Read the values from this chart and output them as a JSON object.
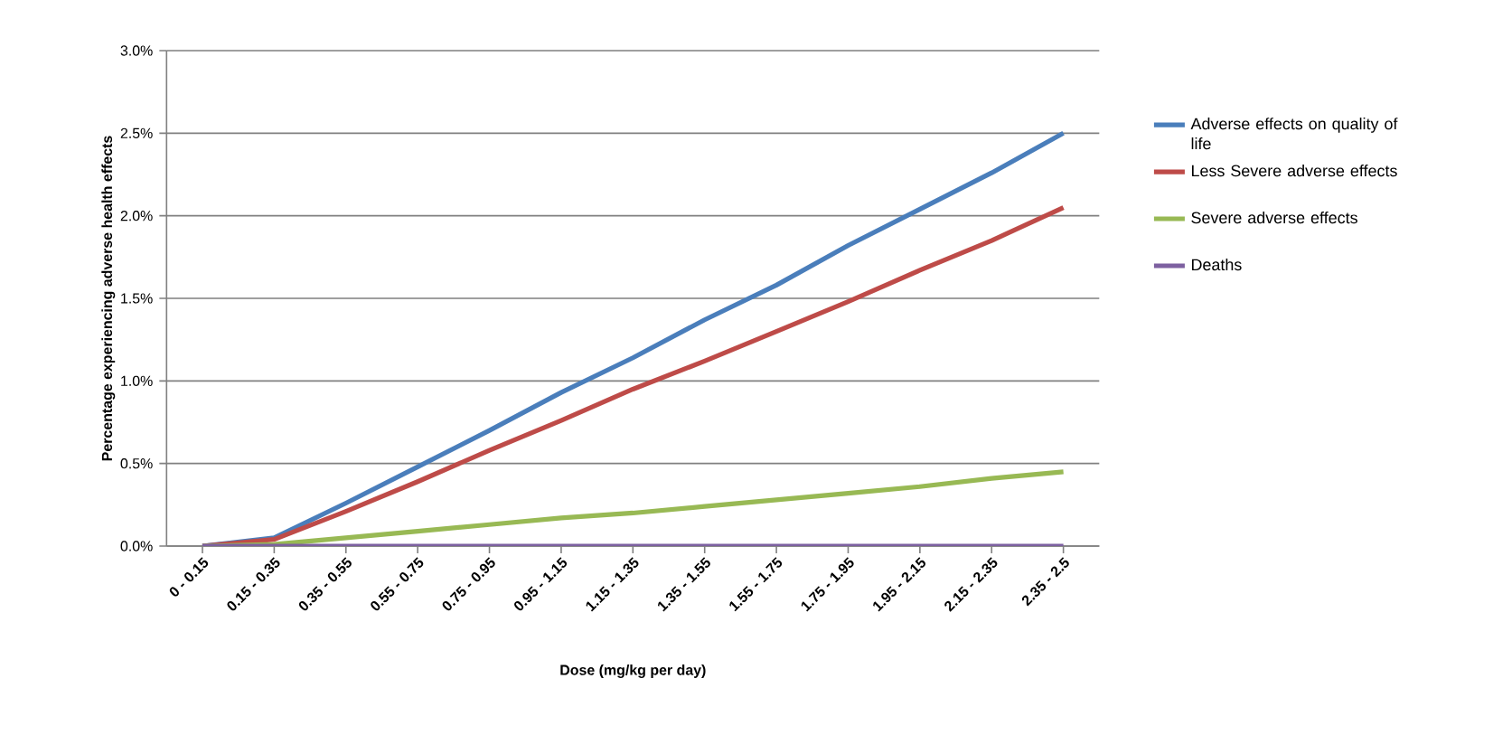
{
  "chart_data": {
    "type": "line",
    "xlabel": "Dose (mg/kg per day)",
    "ylabel": "Percentage experiencing adverse health effects",
    "categories": [
      "0 - 0.15",
      "0.15 - 0.35",
      "0.35 - 0.55",
      "0.55 - 0.75",
      "0.75 - 0.95",
      "0.95 - 1.15",
      "1.15 - 1.35",
      "1.35 - 1.55",
      "1.55 - 1.75",
      "1.75 - 1.95",
      "1.95 - 2.15",
      "2.15 - 2.35",
      "2.35 - 2.5"
    ],
    "series": [
      {
        "name": "Adverse effects on quality of life",
        "color": "#4a7ebb",
        "values": [
          0,
          0.05,
          0.26,
          0.48,
          0.7,
          0.93,
          1.14,
          1.37,
          1.58,
          1.82,
          2.04,
          2.26,
          2.5
        ]
      },
      {
        "name": "Less Severe adverse effects",
        "color": "#be4b48",
        "values": [
          0,
          0.04,
          0.21,
          0.39,
          0.58,
          0.76,
          0.95,
          1.12,
          1.3,
          1.48,
          1.67,
          1.85,
          2.05
        ]
      },
      {
        "name": "Severe adverse effects",
        "color": "#98b954",
        "values": [
          0,
          0.01,
          0.05,
          0.09,
          0.13,
          0.17,
          0.2,
          0.24,
          0.28,
          0.32,
          0.36,
          0.41,
          0.45
        ]
      },
      {
        "name": "Deaths",
        "color": "#7d60a0",
        "values": [
          0,
          0,
          0,
          0,
          0,
          0,
          0,
          0,
          0,
          0,
          0,
          0,
          0
        ]
      }
    ],
    "ylim": [
      0,
      3
    ],
    "yticks": [
      {
        "value": 0,
        "label": "0.0%"
      },
      {
        "value": 0.5,
        "label": "0.5%"
      },
      {
        "value": 1,
        "label": "1.0%"
      },
      {
        "value": 1.5,
        "label": "1.5%"
      },
      {
        "value": 2,
        "label": "2.0%"
      },
      {
        "value": 2.5,
        "label": "2.5%"
      },
      {
        "value": 3,
        "label": "3.0%"
      }
    ],
    "grid": "y",
    "legend": "right",
    "marker": "none",
    "line_style": "solid"
  }
}
